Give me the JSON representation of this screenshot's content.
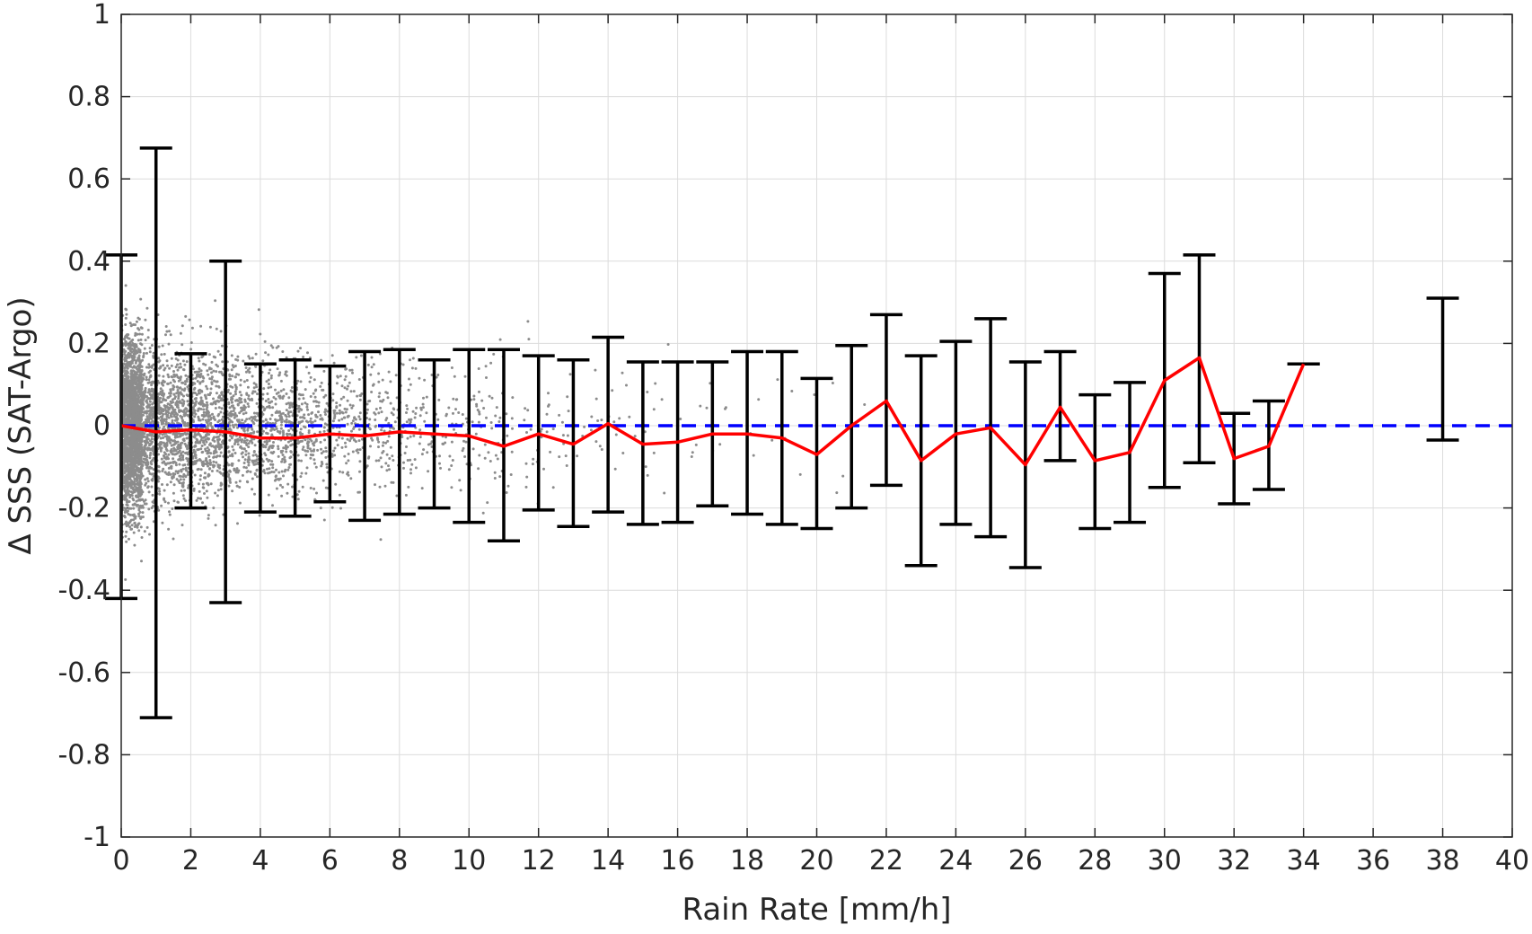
{
  "chart_data": {
    "type": "scatter",
    "xlabel": "Rain Rate [mm/h]",
    "ylabel": "Δ SSS (SAT-Argo)",
    "xlim": [
      0,
      40
    ],
    "ylim": [
      -1,
      1
    ],
    "xticks": [
      "0",
      "2",
      "4",
      "6",
      "8",
      "10",
      "12",
      "14",
      "16",
      "18",
      "20",
      "22",
      "24",
      "26",
      "28",
      "30",
      "32",
      "34",
      "36",
      "38",
      "40"
    ],
    "yticks": [
      "1",
      "0.8",
      "0.6",
      "0.4",
      "0.2",
      "0",
      "-0.2",
      "-0.4",
      "-0.6",
      "-0.8",
      "-1"
    ],
    "grid": true,
    "colors": {
      "scatter": "#8c8c8c",
      "mean_line": "#ff0000",
      "error_bars": "#000000",
      "zero_line": "#0000ff",
      "grid": "#dcdcdc",
      "axes": "#262626"
    },
    "series": [
      {
        "style": "red-line",
        "x": [
          0,
          1,
          2,
          3,
          4,
          5,
          6,
          7,
          8,
          9,
          10,
          11,
          12,
          13,
          14,
          15,
          16,
          17,
          18,
          19,
          20,
          21,
          22,
          23,
          24,
          25,
          26,
          27,
          28,
          29,
          30,
          31,
          32,
          33,
          34
        ],
        "y": [
          0,
          -0.015,
          -0.01,
          -0.015,
          -0.03,
          -0.03,
          -0.02,
          -0.025,
          -0.015,
          -0.02,
          -0.025,
          -0.05,
          -0.02,
          -0.045,
          0.005,
          -0.045,
          -0.04,
          -0.02,
          -0.02,
          -0.03,
          -0.07,
          0,
          0.06,
          -0.085,
          -0.02,
          -0.005,
          -0.095,
          0.045,
          -0.085,
          -0.065,
          0.11,
          0.165,
          -0.08,
          -0.05,
          0.15
        ]
      },
      {
        "style": "error-bars",
        "x": [
          0,
          1,
          2,
          3,
          4,
          5,
          6,
          7,
          8,
          9,
          10,
          11,
          12,
          13,
          14,
          15,
          16,
          17,
          18,
          19,
          20,
          21,
          22,
          23,
          24,
          25,
          26,
          27,
          28,
          29,
          30,
          31,
          32,
          33,
          34,
          38
        ],
        "upper": [
          0.415,
          0.675,
          0.175,
          0.4,
          0.15,
          0.16,
          0.145,
          0.18,
          0.185,
          0.16,
          0.185,
          0.185,
          0.17,
          0.16,
          0.215,
          0.155,
          0.155,
          0.155,
          0.18,
          0.18,
          0.115,
          0.195,
          0.27,
          0.17,
          0.205,
          0.26,
          0.155,
          0.18,
          0.075,
          0.105,
          0.37,
          0.415,
          0.03,
          0.06,
          0.15,
          0.31
        ],
        "lower": [
          -0.42,
          -0.71,
          -0.2,
          -0.43,
          -0.21,
          -0.22,
          -0.185,
          -0.23,
          -0.215,
          -0.2,
          -0.235,
          -0.28,
          -0.205,
          -0.245,
          -0.21,
          -0.24,
          -0.235,
          -0.195,
          -0.215,
          -0.24,
          -0.25,
          -0.2,
          -0.145,
          -0.34,
          -0.24,
          -0.27,
          -0.345,
          -0.085,
          -0.25,
          -0.235,
          -0.15,
          -0.09,
          -0.19,
          -0.155,
          0.15,
          -0.035
        ]
      },
      {
        "style": "blue-dashed",
        "x": [
          0,
          40
        ],
        "y": [
          0,
          0
        ]
      }
    ]
  }
}
